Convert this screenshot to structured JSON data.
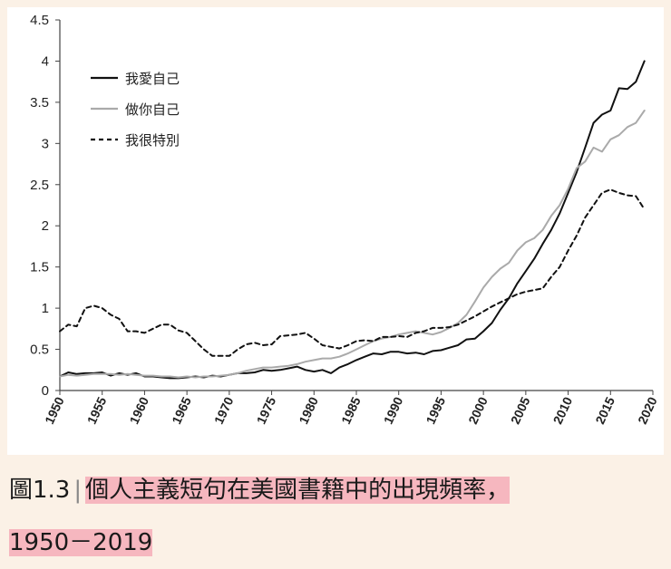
{
  "chart_data": {
    "type": "line",
    "ylim": [
      0,
      4.5
    ],
    "xlim": [
      1950,
      2020
    ],
    "y_ticks": [
      "0",
      "0.5",
      "1",
      "1.5",
      "2",
      "2.5",
      "3",
      "3.5",
      "4",
      "4.5"
    ],
    "x_ticks": [
      "1950",
      "1955",
      "1960",
      "1965",
      "1970",
      "1975",
      "1980",
      "1985",
      "1990",
      "1995",
      "2000",
      "2005",
      "2010",
      "2015",
      "2020"
    ],
    "legend_position": "top-left",
    "grid": false,
    "x": [
      1950,
      1951,
      1952,
      1953,
      1954,
      1955,
      1956,
      1957,
      1958,
      1959,
      1960,
      1961,
      1962,
      1963,
      1964,
      1965,
      1966,
      1967,
      1968,
      1969,
      1970,
      1971,
      1972,
      1973,
      1974,
      1975,
      1976,
      1977,
      1978,
      1979,
      1980,
      1981,
      1982,
      1983,
      1984,
      1985,
      1986,
      1987,
      1988,
      1989,
      1990,
      1991,
      1992,
      1993,
      1994,
      1995,
      1996,
      1997,
      1998,
      1999,
      2000,
      2001,
      2002,
      2003,
      2004,
      2005,
      2006,
      2007,
      2008,
      2009,
      2010,
      2011,
      2012,
      2013,
      2014,
      2015,
      2016,
      2017,
      2018,
      2019
    ],
    "series": [
      {
        "name": "我愛自己",
        "color": "#111111",
        "dash": "solid",
        "values": [
          0.17,
          0.22,
          0.2,
          0.21,
          0.21,
          0.22,
          0.18,
          0.21,
          0.19,
          0.21,
          0.17,
          0.17,
          0.16,
          0.15,
          0.15,
          0.16,
          0.17,
          0.16,
          0.18,
          0.17,
          0.19,
          0.21,
          0.21,
          0.22,
          0.25,
          0.24,
          0.25,
          0.27,
          0.29,
          0.25,
          0.23,
          0.25,
          0.21,
          0.28,
          0.32,
          0.37,
          0.41,
          0.45,
          0.44,
          0.47,
          0.47,
          0.45,
          0.46,
          0.44,
          0.48,
          0.49,
          0.52,
          0.55,
          0.62,
          0.63,
          0.72,
          0.82,
          0.98,
          1.12,
          1.3,
          1.45,
          1.6,
          1.78,
          1.95,
          2.15,
          2.4,
          2.65,
          2.95,
          3.25,
          3.35,
          3.4,
          3.67,
          3.66,
          3.75,
          4.0
        ]
      },
      {
        "name": "做你自己",
        "color": "#aaaaaa",
        "dash": "solid",
        "values": [
          0.17,
          0.19,
          0.18,
          0.19,
          0.2,
          0.2,
          0.2,
          0.19,
          0.2,
          0.19,
          0.18,
          0.18,
          0.17,
          0.17,
          0.16,
          0.17,
          0.16,
          0.17,
          0.17,
          0.18,
          0.19,
          0.21,
          0.24,
          0.26,
          0.28,
          0.28,
          0.29,
          0.3,
          0.32,
          0.35,
          0.37,
          0.39,
          0.39,
          0.41,
          0.45,
          0.5,
          0.55,
          0.6,
          0.63,
          0.65,
          0.68,
          0.7,
          0.72,
          0.7,
          0.68,
          0.71,
          0.76,
          0.82,
          0.92,
          1.08,
          1.25,
          1.38,
          1.48,
          1.55,
          1.7,
          1.8,
          1.85,
          1.95,
          2.12,
          2.25,
          2.45,
          2.7,
          2.78,
          2.95,
          2.9,
          3.05,
          3.1,
          3.2,
          3.25,
          3.4
        ]
      },
      {
        "name": "我很特別",
        "color": "#111111",
        "dash": "dashed",
        "values": [
          0.72,
          0.8,
          0.78,
          1.0,
          1.03,
          1.0,
          0.92,
          0.87,
          0.72,
          0.72,
          0.7,
          0.75,
          0.8,
          0.8,
          0.73,
          0.7,
          0.6,
          0.5,
          0.42,
          0.42,
          0.42,
          0.5,
          0.56,
          0.58,
          0.55,
          0.56,
          0.66,
          0.67,
          0.68,
          0.7,
          0.63,
          0.55,
          0.53,
          0.51,
          0.55,
          0.6,
          0.61,
          0.6,
          0.65,
          0.65,
          0.66,
          0.65,
          0.7,
          0.72,
          0.76,
          0.76,
          0.77,
          0.8,
          0.85,
          0.9,
          0.96,
          1.02,
          1.07,
          1.12,
          1.17,
          1.2,
          1.22,
          1.24,
          1.38,
          1.5,
          1.7,
          1.88,
          2.1,
          2.25,
          2.4,
          2.44,
          2.4,
          2.37,
          2.36,
          2.2
        ]
      }
    ]
  },
  "caption": {
    "prefix": "圖1.3",
    "separator": "|",
    "title_line1": "個人主義短句在美國書籍中的出現頻率，",
    "title_line2": "1950－2019"
  }
}
